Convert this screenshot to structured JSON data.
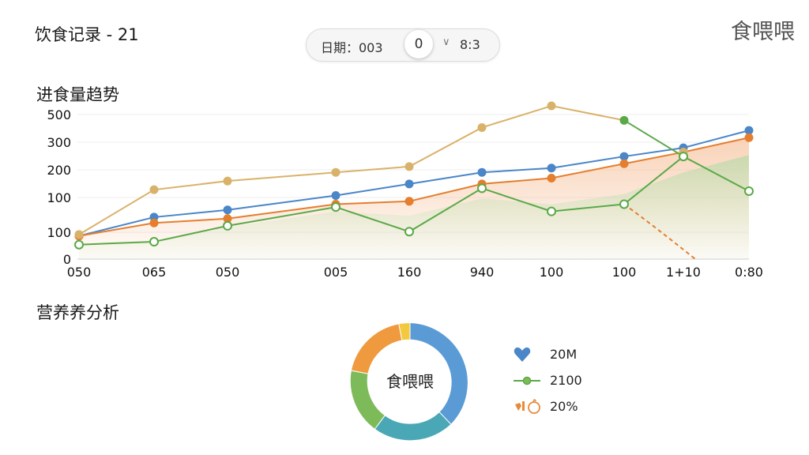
{
  "header": {
    "title": "饮食记录 - 21",
    "brand": "食喂喂",
    "date_label": "日期：003",
    "date_knob": "0",
    "date_end": "8:3"
  },
  "trend": {
    "title": "进食量趋势",
    "chart_data": {
      "type": "line",
      "title": "",
      "y_ticks": [
        "500",
        "300",
        "200",
        "100",
        "100",
        "0"
      ],
      "x": [
        "050",
        "065",
        "050",
        "005",
        "160",
        "940",
        "100",
        "100",
        "1+10",
        "0:80"
      ],
      "series": [
        {
          "color": "#4a86c8",
          "values": [
            0.16,
            0.29,
            0.34,
            0.44,
            0.52,
            0.6,
            0.63,
            0.71,
            0.77,
            0.89
          ]
        },
        {
          "color": "#e57e2e",
          "values": [
            0.16,
            0.25,
            0.28,
            0.38,
            0.4,
            0.52,
            0.56,
            0.66,
            0.74,
            0.84
          ]
        },
        {
          "color": "#d9b26a",
          "values": [
            0.17,
            0.48,
            0.54,
            0.6,
            0.64,
            0.91,
            1.06,
            "",
            0.74,
            ""
          ]
        },
        {
          "color": "#5aa947",
          "values": [
            0.1,
            0.12,
            0.23,
            0.36,
            0.19,
            0.49,
            0.33,
            0.38,
            0.71,
            0.47
          ]
        }
      ],
      "notes": "gold line peaks at 100 then joins the green line at the 100 (second) point; green dips between 100 and 1+10; an orange dashed line falls off from the second 100 point"
    }
  },
  "nutrition": {
    "title": "营养养分析",
    "center_label": "食喂喂",
    "slices": [
      {
        "color": "#5b9bd5",
        "value": 0.38
      },
      {
        "color": "#4aa8b6",
        "value": 0.22
      },
      {
        "color": "#7dbb5a",
        "value": 0.18
      },
      {
        "color": "#ef9a3e",
        "value": 0.19
      },
      {
        "color": "#f3c940",
        "value": 0.03
      }
    ],
    "legend": [
      {
        "icon": "heart-icon",
        "color": "#4a86c8",
        "text": "20M"
      },
      {
        "icon": "line-dot-icon",
        "color": "#5aa947",
        "text": "2100"
      },
      {
        "icon": "fruit-icon",
        "color": "#e88a3a",
        "text": "20%"
      }
    ]
  }
}
